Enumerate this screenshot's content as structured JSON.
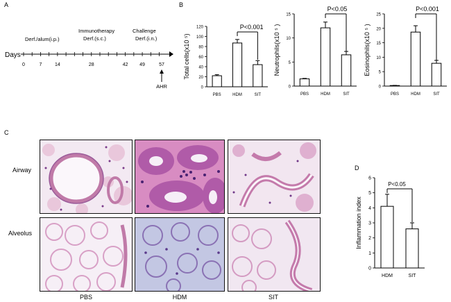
{
  "panels": {
    "a": "A",
    "b": "B",
    "c": "C",
    "d": "D"
  },
  "timeline": {
    "axis_label": "Days",
    "days": [
      "0",
      "7",
      "14",
      "28",
      "42",
      "49",
      "57"
    ],
    "phases": [
      {
        "id": "sensitization",
        "text": "Derf./alum(i.p.)"
      },
      {
        "id": "immunotherapy",
        "line1": "Immunotherapy",
        "line2": "Derf.(s.c.)"
      },
      {
        "id": "challenge",
        "line1": "Challenge",
        "line2": "Derf.(i.n.)"
      }
    ],
    "endpoint": "AHR"
  },
  "chart_data": [
    {
      "id": "total-cells",
      "type": "bar",
      "categories": [
        "PBS",
        "HDM",
        "SIT"
      ],
      "values": [
        22,
        87,
        44
      ],
      "errors": [
        2,
        7,
        8
      ],
      "ylabel": "Total cells(x10 ⁵)",
      "ylim": [
        0,
        120
      ],
      "yticks": [
        "0",
        "20",
        "40",
        "60",
        "80",
        "100",
        "120"
      ],
      "significance": {
        "label": "P<0.001",
        "between": [
          "HDM",
          "SIT"
        ]
      }
    },
    {
      "id": "neutrophils",
      "type": "bar",
      "categories": [
        "PBS",
        "HDM",
        "SIT"
      ],
      "values": [
        1.5,
        12.1,
        6.5
      ],
      "errors": [
        0.1,
        1.2,
        0.7
      ],
      "ylabel": "Neutrophils(x10 ⁵ )",
      "ylim": [
        0,
        15
      ],
      "yticks": [
        "0",
        "5",
        "10",
        "15"
      ],
      "significance": {
        "label": "P<0.05",
        "between": [
          "HDM",
          "SIT"
        ]
      }
    },
    {
      "id": "eosinophils",
      "type": "bar",
      "categories": [
        "PBS",
        "HDM",
        "SIT"
      ],
      "values": [
        0.2,
        18.7,
        7.9
      ],
      "errors": [
        0.05,
        2.2,
        1.0
      ],
      "ylabel": "Eosinophils(x10 ⁵ )",
      "ylim": [
        0,
        25
      ],
      "yticks": [
        "0",
        "5",
        "10",
        "15",
        "20",
        "25"
      ],
      "significance": {
        "label": "P<0.001",
        "between": [
          "HDM",
          "SIT"
        ]
      }
    },
    {
      "id": "inflammation-index",
      "type": "bar",
      "categories": [
        "HDM",
        "SIT"
      ],
      "values": [
        4.1,
        2.6
      ],
      "errors": [
        0.8,
        0.4
      ],
      "ylabel": "Inflammation index",
      "ylim": [
        0,
        6
      ],
      "yticks": [
        "0",
        "1",
        "2",
        "3",
        "4",
        "5",
        "6"
      ],
      "significance": {
        "label": "P<0.05",
        "between": [
          "HDM",
          "SIT"
        ]
      }
    }
  ],
  "histology": {
    "rows": [
      "Airway",
      "Alveolus"
    ],
    "columns": [
      "PBS",
      "HDM",
      "SIT"
    ]
  },
  "colors": {
    "tissue_pink": "#e6b4cf",
    "tissue_purple": "#8f4f9e",
    "hdm_blue": "#b9bedf",
    "background": "#f4eef5"
  }
}
